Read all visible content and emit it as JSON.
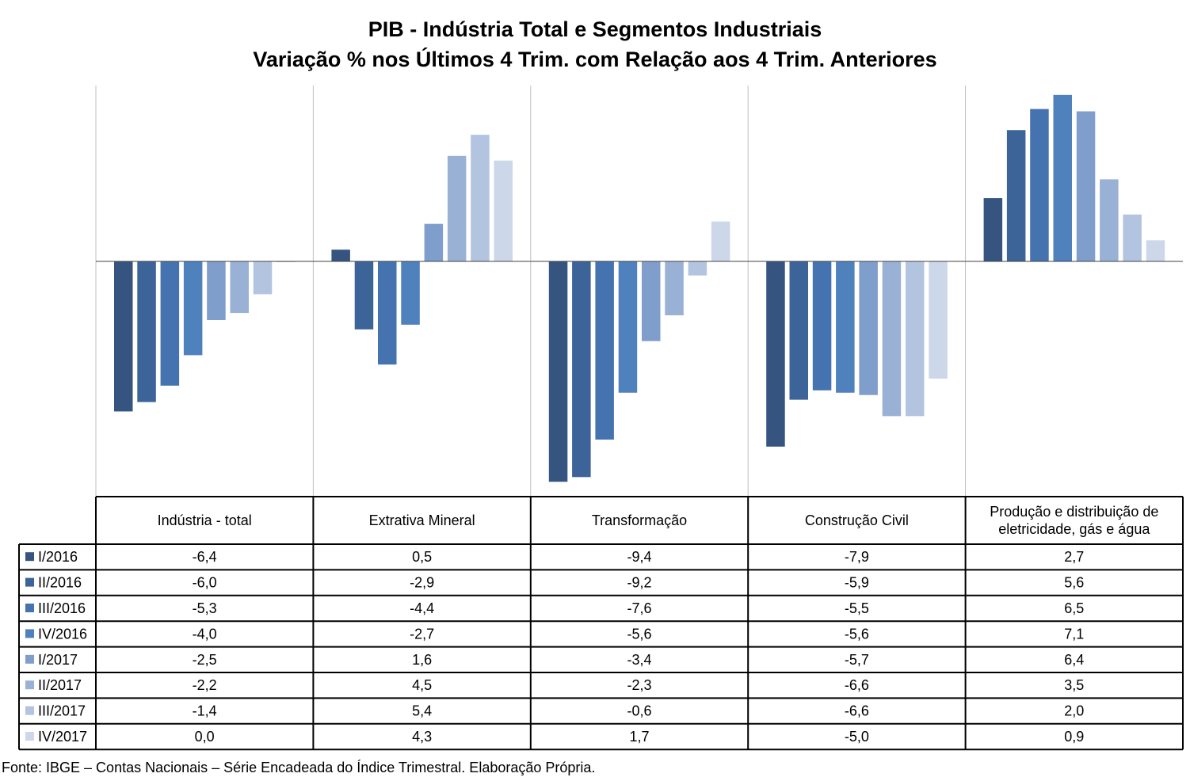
{
  "chart_data": {
    "type": "bar",
    "title": "PIB - Indústria Total e Segmentos Industriais",
    "subtitle": "Variação % nos Últimos 4 Trim. com Relação aos 4 Trim. Anteriores",
    "categories": [
      "Indústria - total",
      "Extrativa Mineral",
      "Transformação",
      "Construção Civil",
      "Produção e distribuição de eletricidade, gás e água"
    ],
    "category_lines": [
      [
        "Indústria - total"
      ],
      [
        "Extrativa Mineral"
      ],
      [
        "Transformação"
      ],
      [
        "Construção Civil"
      ],
      [
        "Produção e distribuição de",
        "eletricidade, gás e água"
      ]
    ],
    "series": [
      {
        "name": "I/2016",
        "color": "#355580",
        "values": [
          -6.4,
          0.5,
          -9.4,
          -7.9,
          2.7
        ],
        "labels": [
          "-6,4",
          "0,5",
          "-9,4",
          "-7,9",
          "2,7"
        ]
      },
      {
        "name": "II/2016",
        "color": "#3C6498",
        "values": [
          -6.0,
          -2.9,
          -9.2,
          -5.9,
          5.6
        ],
        "labels": [
          "-6,0",
          "-2,9",
          "-9,2",
          "-5,9",
          "5,6"
        ]
      },
      {
        "name": "III/2016",
        "color": "#4573B0",
        "values": [
          -5.3,
          -4.4,
          -7.6,
          -5.5,
          6.5
        ],
        "labels": [
          "-5,3",
          "-4,4",
          "-7,6",
          "-5,5",
          "6,5"
        ]
      },
      {
        "name": "IV/2016",
        "color": "#4F81BD",
        "values": [
          -4.0,
          -2.7,
          -5.6,
          -5.6,
          7.1
        ],
        "labels": [
          "-4,0",
          "-2,7",
          "-5,6",
          "-5,6",
          "7,1"
        ]
      },
      {
        "name": "I/2017",
        "color": "#7F9ECB",
        "values": [
          -2.5,
          1.6,
          -3.4,
          -5.7,
          6.4
        ],
        "labels": [
          "-2,5",
          "1,6",
          "-3,4",
          "-5,7",
          "6,4"
        ]
      },
      {
        "name": "II/2017",
        "color": "#9AB1D6",
        "values": [
          -2.2,
          4.5,
          -2.3,
          -6.6,
          3.5
        ],
        "labels": [
          "-2,2",
          "4,5",
          "-2,3",
          "-6,6",
          "3,5"
        ]
      },
      {
        "name": "III/2017",
        "color": "#B3C4E1",
        "values": [
          -1.4,
          5.4,
          -0.6,
          -6.6,
          2.0
        ],
        "labels": [
          "-1,4",
          "5,4",
          "-0,6",
          "-6,6",
          "2,0"
        ]
      },
      {
        "name": "IV/2017",
        "color": "#CCD7EA",
        "values": [
          0.0,
          4.3,
          1.7,
          -5.0,
          0.9
        ],
        "labels": [
          "0,0",
          "4,3",
          "1,7",
          "-5,0",
          "0,9"
        ]
      }
    ],
    "ylim": [
      -10.0,
      7.5
    ],
    "grid": false,
    "legend": "data-table"
  },
  "source": "Fonte: IBGE – Contas Nacionais – Série Encadeada do Índice Trimestral. Elaboração Própria."
}
